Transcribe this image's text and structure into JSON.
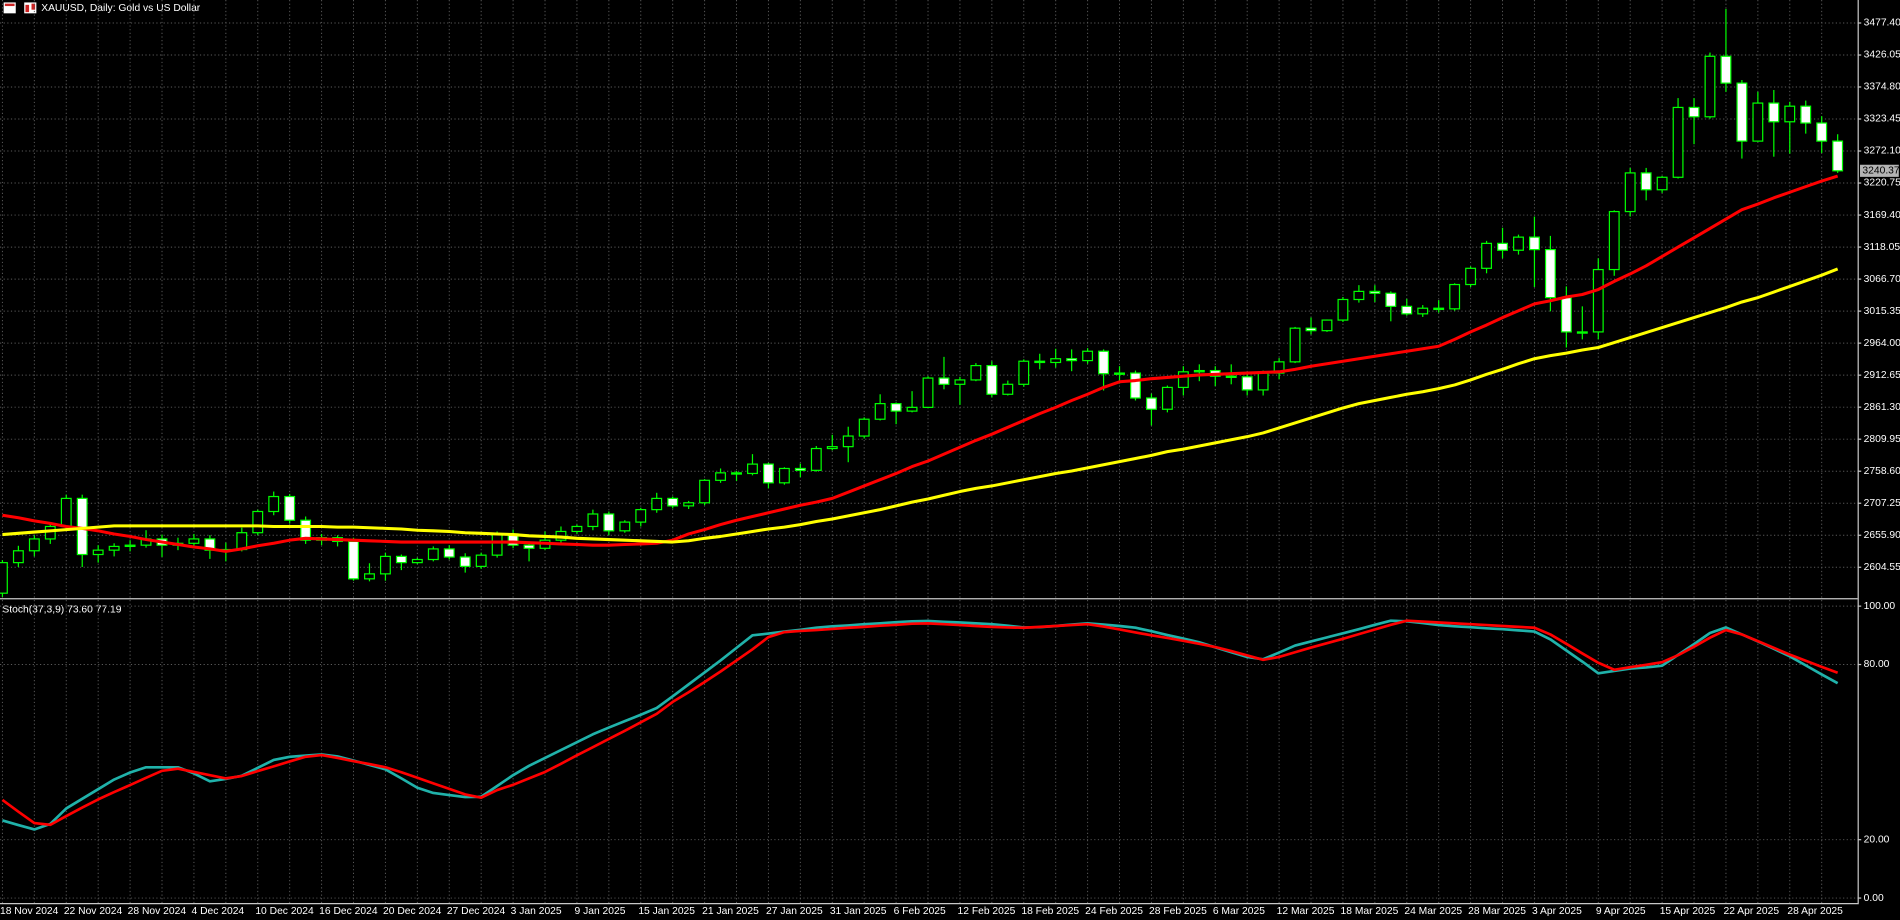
{
  "chart_data": [
    {
      "type": "candlestick",
      "title": "XAUUSD, Daily:  Gold vs US Dollar",
      "categories": [
        "18 Nov 2024",
        null,
        null,
        null,
        "22 Nov 2024",
        null,
        null,
        null,
        "28 Nov 2024",
        null,
        null,
        null,
        "4 Dec 2024",
        null,
        null,
        null,
        "10 Dec 2024",
        null,
        null,
        null,
        "16 Dec 2024",
        null,
        null,
        null,
        "20 Dec 2024",
        null,
        null,
        null,
        "27 Dec 2024",
        null,
        null,
        null,
        "3 Jan 2025",
        null,
        null,
        null,
        "9 Jan 2025",
        null,
        null,
        null,
        "15 Jan 2025",
        null,
        null,
        null,
        "21 Jan 2025",
        null,
        null,
        null,
        "27 Jan 2025",
        null,
        null,
        null,
        "31 Jan 2025",
        null,
        null,
        null,
        "6 Feb 2025",
        null,
        null,
        null,
        "12 Feb 2025",
        null,
        null,
        null,
        "18 Feb 2025",
        null,
        null,
        null,
        "24 Feb 2025",
        null,
        null,
        null,
        "28 Feb 2025",
        null,
        null,
        null,
        "6 Mar 2025",
        null,
        null,
        null,
        "12 Mar 2025",
        null,
        null,
        null,
        "18 Mar 2025",
        null,
        null,
        null,
        "24 Mar 2025",
        null,
        null,
        null,
        "28 Mar 2025",
        null,
        null,
        null,
        "3 Apr 2025",
        null,
        null,
        null,
        "9 Apr 2025",
        null,
        null,
        null,
        "15 Apr 2025",
        null,
        null,
        null,
        "22 Apr 2025",
        null,
        null,
        null,
        "28 Apr 2025",
        null,
        null,
        null
      ],
      "open": [
        2563,
        2612,
        2631,
        2650,
        2670,
        2715,
        2625,
        2632,
        2638,
        2640,
        2650,
        2640,
        2643,
        2650,
        2632,
        2633,
        2660,
        2694,
        2718,
        2680,
        2648,
        2652,
        2646,
        2586,
        2594,
        2622,
        2612,
        2617,
        2634,
        2621,
        2606,
        2624,
        2658,
        2640,
        2635,
        2648,
        2662,
        2670,
        2690,
        2663,
        2677,
        2697,
        2715,
        2703,
        2708,
        2744,
        2756,
        2755,
        2770,
        2740,
        2763,
        2760,
        2795,
        2798,
        2815,
        2842,
        2867,
        2855,
        2861,
        2908,
        2898,
        2905,
        2928,
        2882,
        2898,
        2935,
        2933,
        2939,
        2936,
        2951,
        2915,
        2916,
        2876,
        2858,
        2893,
        2918,
        2920,
        2911,
        2910,
        2889,
        2916,
        2934,
        2988,
        2984,
        3001,
        3034,
        3047,
        3044,
        3023,
        3011,
        3020,
        3019,
        3058,
        3084,
        3124,
        3113,
        3134,
        3114,
        3037,
        2982,
        2982,
        3082,
        3175,
        3237,
        3210,
        3230,
        3342,
        3327,
        3424,
        3381,
        3288,
        3349,
        3319,
        3344,
        3317,
        3288
      ],
      "high": [
        2616,
        2639,
        2656,
        2674,
        2721,
        2721,
        2640,
        2643,
        2648,
        2664,
        2657,
        2652,
        2658,
        2656,
        2644,
        2668,
        2697,
        2726,
        2722,
        2686,
        2658,
        2656,
        2652,
        2611,
        2628,
        2625,
        2620,
        2638,
        2640,
        2627,
        2628,
        2662,
        2665,
        2645,
        2662,
        2670,
        2673,
        2697,
        2694,
        2680,
        2700,
        2724,
        2718,
        2711,
        2746,
        2763,
        2759,
        2786,
        2772,
        2765,
        2771,
        2799,
        2817,
        2830,
        2845,
        2882,
        2869,
        2887,
        2911,
        2942,
        2910,
        2932,
        2935,
        2904,
        2938,
        2947,
        2955,
        2954,
        2956,
        2954,
        2927,
        2920,
        2883,
        2896,
        2927,
        2930,
        2927,
        2930,
        2916,
        2920,
        2940,
        2990,
        3005,
        3002,
        3038,
        3057,
        3057,
        3047,
        3035,
        3025,
        3033,
        3060,
        3087,
        3128,
        3149,
        3138,
        3167,
        3136,
        3055,
        3023,
        3100,
        3177,
        3245,
        3245,
        3232,
        3357,
        3357,
        3430,
        3500,
        3386,
        3367,
        3370,
        3351,
        3353,
        3328,
        3299
      ],
      "low": [
        2557,
        2605,
        2622,
        2642,
        2665,
        2605,
        2612,
        2622,
        2630,
        2636,
        2621,
        2632,
        2636,
        2618,
        2614,
        2630,
        2656,
        2688,
        2675,
        2642,
        2640,
        2638,
        2583,
        2582,
        2583,
        2600,
        2610,
        2614,
        2617,
        2596,
        2602,
        2620,
        2635,
        2614,
        2632,
        2644,
        2658,
        2664,
        2656,
        2660,
        2670,
        2692,
        2699,
        2698,
        2704,
        2740,
        2743,
        2752,
        2731,
        2737,
        2749,
        2758,
        2792,
        2773,
        2811,
        2840,
        2834,
        2853,
        2860,
        2890,
        2865,
        2903,
        2877,
        2880,
        2894,
        2922,
        2925,
        2919,
        2931,
        2888,
        2899,
        2872,
        2832,
        2853,
        2880,
        2903,
        2895,
        2898,
        2880,
        2880,
        2906,
        2932,
        2978,
        2982,
        2998,
        3029,
        3030,
        2999,
        3008,
        3006,
        3013,
        3016,
        3054,
        3076,
        3100,
        3106,
        3054,
        3015,
        2957,
        2970,
        2970,
        3072,
        3167,
        3193,
        3205,
        3228,
        3283,
        3324,
        3367,
        3260,
        3287,
        3263,
        3268,
        3300,
        3269,
        3237
      ],
      "close": [
        2612,
        2631,
        2650,
        2670,
        2715,
        2625,
        2632,
        2638,
        2640,
        2650,
        2640,
        2643,
        2650,
        2632,
        2633,
        2660,
        2694,
        2718,
        2680,
        2648,
        2652,
        2646,
        2586,
        2594,
        2622,
        2612,
        2617,
        2634,
        2621,
        2606,
        2624,
        2658,
        2640,
        2635,
        2648,
        2662,
        2670,
        2690,
        2663,
        2677,
        2697,
        2715,
        2703,
        2708,
        2744,
        2756,
        2755,
        2770,
        2740,
        2763,
        2760,
        2795,
        2798,
        2815,
        2842,
        2867,
        2855,
        2861,
        2908,
        2898,
        2905,
        2928,
        2882,
        2898,
        2935,
        2933,
        2939,
        2936,
        2951,
        2915,
        2916,
        2876,
        2858,
        2893,
        2918,
        2920,
        2911,
        2910,
        2889,
        2916,
        2934,
        2988,
        2984,
        3001,
        3034,
        3047,
        3044,
        3023,
        3011,
        3020,
        3019,
        3058,
        3084,
        3124,
        3113,
        3134,
        3114,
        3037,
        2982,
        2982,
        3082,
        3175,
        3237,
        3210,
        3230,
        3342,
        3327,
        3424,
        3381,
        3288,
        3349,
        3319,
        3344,
        3317,
        3288,
        3240.37
      ],
      "up_color": "#00ff00",
      "bull_body": "#000000",
      "bear_body": "#ffffff",
      "lines": [
        {
          "color": "#ff0000",
          "values": [
            2688,
            2684,
            2679,
            2675,
            2670,
            2667,
            2663,
            2658,
            2654,
            2649,
            2645,
            2641,
            2637,
            2634,
            2630,
            2634,
            2639,
            2643,
            2648,
            2651,
            2650,
            2649,
            2648,
            2647,
            2646,
            2645,
            2645,
            2645,
            2645,
            2645,
            2645,
            2645,
            2645,
            2644,
            2643,
            2642,
            2641,
            2640,
            2640,
            2641,
            2642,
            2643,
            2648,
            2658,
            2665,
            2673,
            2680,
            2686,
            2692,
            2698,
            2704,
            2709,
            2715,
            2725,
            2735,
            2745,
            2755,
            2766,
            2775,
            2786,
            2797,
            2808,
            2818,
            2829,
            2840,
            2851,
            2861,
            2872,
            2882,
            2893,
            2902,
            2904,
            2907,
            2909,
            2911,
            2913,
            2914,
            2915,
            2916,
            2917,
            2918,
            2922,
            2927,
            2931,
            2935,
            2939,
            2943,
            2947,
            2951,
            2955,
            2959,
            2970,
            2982,
            2993,
            3005,
            3016,
            3027,
            3032,
            3038,
            3042,
            3050,
            3063,
            3075,
            3088,
            3103,
            3118,
            3133,
            3148,
            3163,
            3178,
            3187,
            3197,
            3206,
            3215,
            3224,
            3232
          ]
        },
        {
          "color": "#ffff00",
          "values": [
            2657,
            2659,
            2661,
            2663,
            2665,
            2667,
            2669,
            2671,
            2671,
            2671,
            2671,
            2671,
            2671,
            2671,
            2671,
            2671,
            2671,
            2670,
            2670,
            2670,
            2670,
            2669,
            2669,
            2668,
            2667,
            2666,
            2664,
            2663,
            2662,
            2660,
            2659,
            2658,
            2657,
            2655,
            2654,
            2653,
            2651,
            2650,
            2649,
            2648,
            2647,
            2646,
            2645,
            2647,
            2651,
            2654,
            2658,
            2662,
            2666,
            2669,
            2673,
            2678,
            2682,
            2687,
            2692,
            2697,
            2703,
            2709,
            2714,
            2720,
            2726,
            2731,
            2735,
            2740,
            2745,
            2750,
            2755,
            2759,
            2764,
            2769,
            2774,
            2779,
            2784,
            2790,
            2794,
            2799,
            2804,
            2809,
            2814,
            2820,
            2828,
            2836,
            2844,
            2852,
            2860,
            2867,
            2872,
            2877,
            2882,
            2886,
            2891,
            2897,
            2905,
            2914,
            2922,
            2931,
            2939,
            2944,
            2948,
            2953,
            2957,
            2965,
            2973,
            2981,
            2989,
            2997,
            3005,
            3013,
            3021,
            3030,
            3037,
            3046,
            3055,
            3064,
            3073,
            3083
          ]
        }
      ],
      "ylim": [
        2557.9,
        3514.3
      ],
      "yticks": [
        {
          "value": 3477.4,
          "label": "3477.40"
        },
        3426.05,
        {
          "value": 3374.8,
          "label": "3374.80"
        },
        3323.45,
        {
          "value": 3272.1,
          "label": "3272.10"
        },
        3220.75,
        {
          "value": 3169.4,
          "label": "3169.40"
        },
        3118.05,
        {
          "value": 3066.7,
          "label": "3066.70"
        },
        3015.35,
        {
          "value": 2964,
          "label": "2964.00"
        },
        2912.65,
        {
          "value": 2861.3,
          "label": "2861.30"
        },
        2809.95,
        {
          "value": 2758.6,
          "label": "2758.60"
        },
        2707.25,
        {
          "value": 2655.9,
          "label": "2655.90"
        },
        2604.55
      ],
      "grid": true
    },
    {
      "type": "line",
      "title": "Stoch(37,3,9) 73.60 77.19",
      "series": [
        {
          "color": "#20b2aa",
          "values": [
            26.6,
            25,
            23.5,
            25.4,
            30.7,
            34,
            37.3,
            40.6,
            43,
            44.8,
            44.8,
            44.8,
            42.7,
            40,
            40.8,
            41.9,
            44.6,
            47.3,
            48.4,
            48.8,
            49.2,
            48.5,
            47.1,
            45.6,
            44.1,
            41,
            37.8,
            36,
            35.3,
            34.6,
            34.7,
            38.4,
            42.1,
            45.3,
            48,
            50.7,
            53.4,
            56.1,
            58.4,
            60.6,
            62.8,
            65.1,
            69.1,
            73.2,
            77.3,
            81.4,
            85.7,
            90,
            90.6,
            91.3,
            91.9,
            92.6,
            93.1,
            93.4,
            93.8,
            94.1,
            94.5,
            94.8,
            94.9,
            94.6,
            94.4,
            94.1,
            93.8,
            93.3,
            92.7,
            92.8,
            93.2,
            93.7,
            94.1,
            93.7,
            93.2,
            92.6,
            91.4,
            90.1,
            88.9,
            87.6,
            85.9,
            84.2,
            82.6,
            81.8,
            84.1,
            86.5,
            87.9,
            89.3,
            90.7,
            92.1,
            93.6,
            95,
            94.8,
            94.2,
            93.5,
            93.1,
            92.8,
            92.4,
            92.1,
            91.7,
            91.3,
            88.6,
            84.8,
            81,
            77,
            77.8,
            78.6,
            79,
            79.6,
            83.3,
            87,
            90.8,
            92.7,
            90.3,
            87.9,
            85.4,
            82.8,
            79.7,
            76.6,
            73.6
          ]
        },
        {
          "color": "#ff0000",
          "values": [
            33.6,
            29.6,
            25.7,
            25.1,
            28.1,
            31,
            33.8,
            36.3,
            38.7,
            41.2,
            43.6,
            44.3,
            43.2,
            42.1,
            41,
            41.8,
            43.5,
            45.1,
            46.8,
            48.4,
            49,
            48,
            46.9,
            45.9,
            44.8,
            43.1,
            41.2,
            39.3,
            37.4,
            35.5,
            34.4,
            37,
            38.8,
            41,
            43.2,
            46,
            48.9,
            51.7,
            54.5,
            57.3,
            60.2,
            63.1,
            67.2,
            70.5,
            74,
            77.6,
            81.4,
            85.2,
            89.4,
            91.1,
            91.5,
            91.8,
            92.2,
            92.6,
            92.9,
            93.3,
            93.6,
            94,
            94.1,
            93.8,
            93.5,
            93.2,
            92.9,
            92.7,
            92.6,
            92.9,
            93.2,
            93.5,
            93.8,
            93,
            92,
            91,
            90,
            89.1,
            88.1,
            87.1,
            86,
            84.6,
            83.1,
            81.6,
            82.6,
            84.2,
            85.8,
            87.3,
            88.8,
            90.4,
            92,
            93.6,
            95,
            94.7,
            94.4,
            94.1,
            93.8,
            93.5,
            93.2,
            92.9,
            92.6,
            90.3,
            87.1,
            83.8,
            80.6,
            78.2,
            79.1,
            79.9,
            80.8,
            83.2,
            86.1,
            89.2,
            91.8,
            90.3,
            88,
            85.7,
            83.4,
            81.3,
            79.2,
            77.19
          ]
        }
      ],
      "ylim": [
        -1.7,
        102.1
      ],
      "yticks": [
        {
          "value": 100,
          "label": "100.00"
        },
        {
          "value": 80,
          "label": "80.00"
        },
        {
          "value": 20,
          "label": "20.00"
        },
        {
          "value": 0,
          "label": "0.00"
        }
      ],
      "grid": true
    }
  ]
}
